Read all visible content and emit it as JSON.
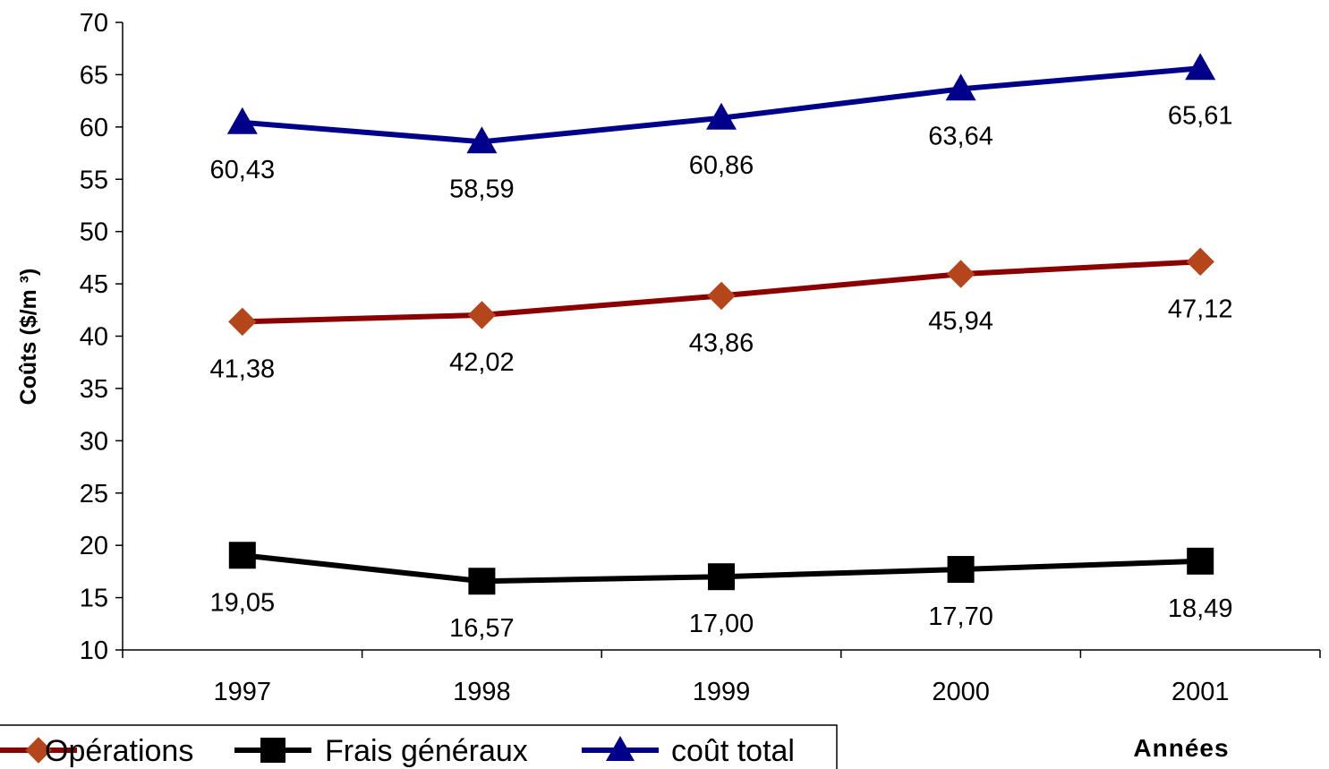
{
  "chart_data": {
    "type": "line",
    "categories": [
      "1997",
      "1998",
      "1999",
      "2000",
      "2001"
    ],
    "ylabel": "Coûts ($/m ³)",
    "xlabel": "Années",
    "ylim": [
      10,
      70
    ],
    "yticks": [
      "10",
      "15",
      "20",
      "25",
      "30",
      "35",
      "40",
      "45",
      "50",
      "55",
      "60",
      "65",
      "70"
    ],
    "grid": false,
    "legend_position": "bottom-left",
    "series": [
      {
        "name": "Opérations",
        "marker": "diamond",
        "color": "#8B0000",
        "marker_color": "#B5451B",
        "values": [
          41.38,
          42.02,
          43.86,
          45.94,
          47.12
        ],
        "labels": [
          "41,38",
          "42,02",
          "43,86",
          "45,94",
          "47,12"
        ]
      },
      {
        "name": "Frais généraux",
        "marker": "square",
        "color": "#000000",
        "marker_color": "#000000",
        "values": [
          19.05,
          16.57,
          17.0,
          17.7,
          18.49
        ],
        "labels": [
          "19,05",
          "16,57",
          "17,00",
          "17,70",
          "18,49"
        ]
      },
      {
        "name": "coût total",
        "marker": "triangle",
        "color": "#00008B",
        "marker_color": "#00008B",
        "values": [
          60.43,
          58.59,
          60.86,
          63.64,
          65.61
        ],
        "labels": [
          "60,43",
          "58,59",
          "60,86",
          "63,64",
          "65,61"
        ]
      }
    ]
  }
}
